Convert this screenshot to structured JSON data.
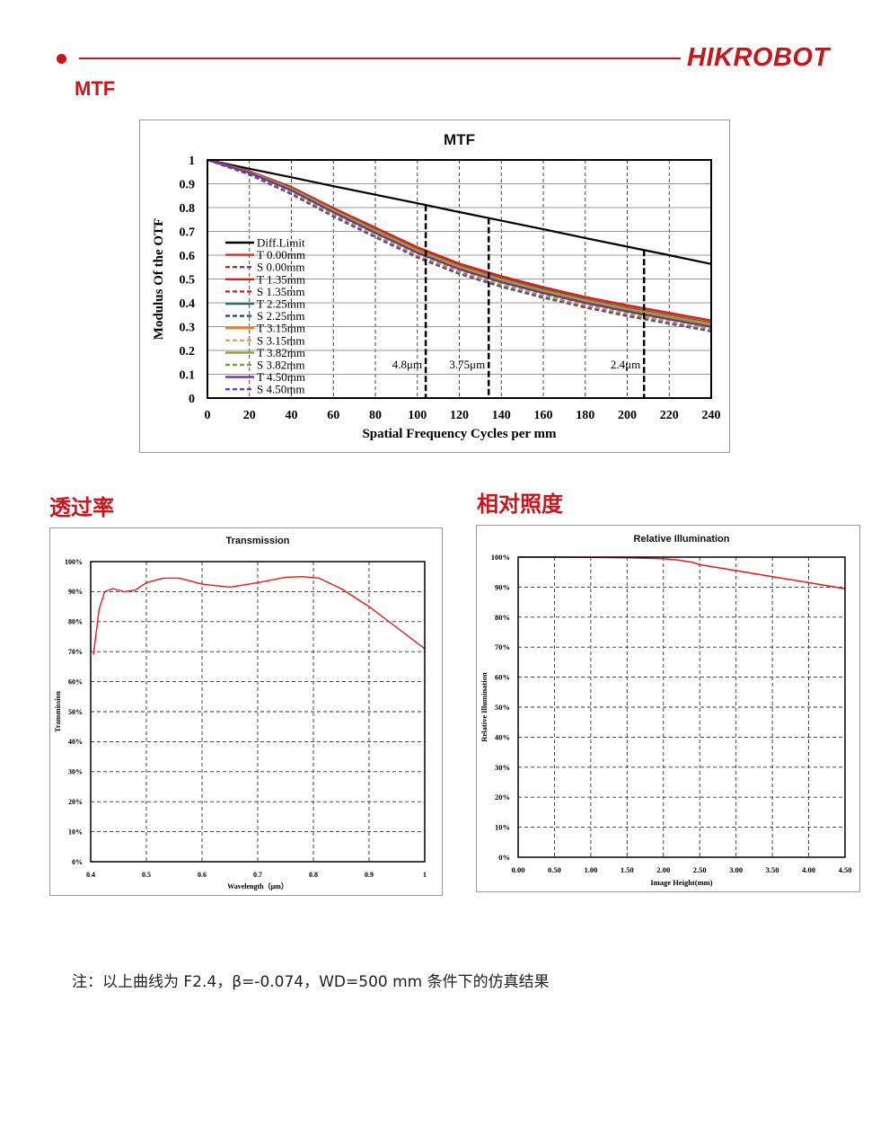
{
  "header": {
    "logo_text": "HIKROBOT",
    "brand_color": "#c8161d"
  },
  "sections": {
    "mtf": "MTF",
    "transmission": "透过率",
    "illumination": "相对照度"
  },
  "note": "注：以上曲线为 F2.4，β=-0.074，WD=500 mm 条件下的仿真结果",
  "chart_data": [
    {
      "type": "line",
      "title": "MTF",
      "xlabel": "Spatial Frequency Cycles per mm",
      "ylabel": "Modulus Of the OTF",
      "xlim": [
        0,
        240
      ],
      "ylim": [
        0,
        1
      ],
      "xticks": [
        "0",
        "20",
        "40",
        "60",
        "80",
        "100",
        "120",
        "140",
        "160",
        "180",
        "200",
        "220",
        "240"
      ],
      "yticks": [
        "0",
        "0.1",
        "0.2",
        "0.3",
        "0.4",
        "0.5",
        "0.6",
        "0.7",
        "0.8",
        "0.9",
        "1"
      ],
      "grid": true,
      "legend_position": "left",
      "x": [
        0,
        20,
        40,
        60,
        80,
        100,
        120,
        140,
        160,
        180,
        200,
        220,
        240
      ],
      "series": [
        {
          "name": "Diff.Limit",
          "color": "#000000",
          "dash": false,
          "values": [
            1,
            0.963,
            0.927,
            0.89,
            0.854,
            0.818,
            0.781,
            0.745,
            0.709,
            0.672,
            0.636,
            0.6,
            0.563
          ]
        },
        {
          "name": "T 0.00mm",
          "color": "#c0392b",
          "dash": false,
          "values": [
            1,
            0.953,
            0.886,
            0.798,
            0.716,
            0.634,
            0.565,
            0.512,
            0.466,
            0.425,
            0.39,
            0.358,
            0.326
          ]
        },
        {
          "name": "S 0.00mm",
          "color": "#8e3a3a",
          "dash": true,
          "values": [
            1,
            0.949,
            0.874,
            0.784,
            0.7,
            0.618,
            0.55,
            0.496,
            0.45,
            0.41,
            0.374,
            0.343,
            0.311
          ]
        },
        {
          "name": "T 1.35mm",
          "color": "#e31a1c",
          "dash": false,
          "values": [
            1,
            0.953,
            0.886,
            0.797,
            0.715,
            0.632,
            0.564,
            0.511,
            0.465,
            0.424,
            0.389,
            0.357,
            0.325
          ]
        },
        {
          "name": "S 1.35mm",
          "color": "#e31a1c",
          "dash": true,
          "values": [
            1,
            0.947,
            0.87,
            0.78,
            0.695,
            0.612,
            0.544,
            0.49,
            0.444,
            0.404,
            0.368,
            0.337,
            0.305
          ]
        },
        {
          "name": "T 2.25mm",
          "color": "#2e6b6b",
          "dash": false,
          "values": [
            1,
            0.951,
            0.882,
            0.792,
            0.708,
            0.625,
            0.556,
            0.503,
            0.457,
            0.416,
            0.38,
            0.348,
            0.316
          ]
        },
        {
          "name": "S 2.25mm",
          "color": "#1f4e79",
          "dash": true,
          "values": [
            1,
            0.945,
            0.867,
            0.776,
            0.69,
            0.607,
            0.538,
            0.484,
            0.438,
            0.397,
            0.361,
            0.33,
            0.298
          ]
        },
        {
          "name": "T 3.15mm",
          "color": "#f07f1a",
          "dash": false,
          "values": [
            1,
            0.95,
            0.879,
            0.789,
            0.704,
            0.621,
            0.552,
            0.498,
            0.452,
            0.411,
            0.375,
            0.343,
            0.311
          ]
        },
        {
          "name": "S 3.15mm",
          "color": "#f39c4a",
          "dash": true,
          "values": [
            1,
            0.943,
            0.863,
            0.771,
            0.685,
            0.601,
            0.532,
            0.478,
            0.432,
            0.391,
            0.355,
            0.323,
            0.291
          ]
        },
        {
          "name": "T 3.82mm",
          "color": "#8aa232",
          "dash": false,
          "values": [
            1,
            0.948,
            0.876,
            0.785,
            0.7,
            0.616,
            0.547,
            0.493,
            0.447,
            0.406,
            0.37,
            0.338,
            0.306
          ]
        },
        {
          "name": "S 3.82mm",
          "color": "#77a33a",
          "dash": true,
          "values": [
            1,
            0.941,
            0.86,
            0.767,
            0.68,
            0.596,
            0.527,
            0.473,
            0.427,
            0.386,
            0.35,
            0.318,
            0.286
          ]
        },
        {
          "name": "T 4.50mm",
          "color": "#7030a0",
          "dash": false,
          "values": [
            1,
            0.946,
            0.872,
            0.78,
            0.694,
            0.61,
            0.541,
            0.487,
            0.441,
            0.4,
            0.364,
            0.331,
            0.299
          ]
        },
        {
          "name": "S 4.50mm",
          "color": "#6a3fa8",
          "dash": true,
          "values": [
            1,
            0.938,
            0.856,
            0.762,
            0.675,
            0.59,
            0.521,
            0.467,
            0.421,
            0.38,
            0.344,
            0.312,
            0.28
          ]
        }
      ],
      "annotations": [
        {
          "x": 104,
          "label": "4.8μm"
        },
        {
          "x": 134,
          "label": "3.75μm"
        },
        {
          "x": 208,
          "label": "2.4μm"
        }
      ]
    },
    {
      "type": "line",
      "title": "Transmission",
      "xlabel": "Wavelength（μm）",
      "ylabel": "Transmission",
      "xlim": [
        0.4,
        1.0
      ],
      "ylim": [
        0,
        100
      ],
      "xticks": [
        "0.4",
        "0.5",
        "0.6",
        "0.7",
        "0.8",
        "0.9",
        "1"
      ],
      "yticks": [
        "0%",
        "10%",
        "20%",
        "30%",
        "40%",
        "50%",
        "60%",
        "70%",
        "80%",
        "90%",
        "100%"
      ],
      "grid": true,
      "series": [
        {
          "name": "",
          "color": "#e31a1c",
          "x": [
            0.405,
            0.415,
            0.425,
            0.44,
            0.46,
            0.48,
            0.5,
            0.53,
            0.56,
            0.6,
            0.65,
            0.7,
            0.75,
            0.78,
            0.81,
            0.85,
            0.9,
            0.95,
            1.0
          ],
          "values": [
            69,
            84,
            90,
            91,
            90,
            90.5,
            93,
            94.5,
            94.5,
            92.5,
            91.5,
            93,
            94.8,
            95,
            94.5,
            91,
            85,
            78,
            71
          ]
        }
      ]
    },
    {
      "type": "line",
      "title": "Relative Illumination",
      "xlabel": "Image Height(mm)",
      "ylabel": "Relative Illumination",
      "xlim": [
        0,
        4.5
      ],
      "ylim": [
        0,
        100
      ],
      "xticks": [
        "0.00",
        "0.50",
        "1.00",
        "1.50",
        "2.00",
        "2.50",
        "3.00",
        "3.50",
        "4.00",
        "4.50"
      ],
      "yticks": [
        "0%",
        "10%",
        "20%",
        "30%",
        "40%",
        "50%",
        "60%",
        "70%",
        "80%",
        "90%",
        "100%"
      ],
      "grid": true,
      "series": [
        {
          "name": "",
          "color": "#e31a1c",
          "x": [
            0,
            0.5,
            1.0,
            1.5,
            2.0,
            2.2,
            2.4,
            2.5,
            3.0,
            3.5,
            4.0,
            4.5
          ],
          "values": [
            100,
            100,
            99.9,
            99.8,
            99.5,
            99,
            98.3,
            97.5,
            95.5,
            93.5,
            91.5,
            89.5
          ]
        }
      ]
    }
  ]
}
